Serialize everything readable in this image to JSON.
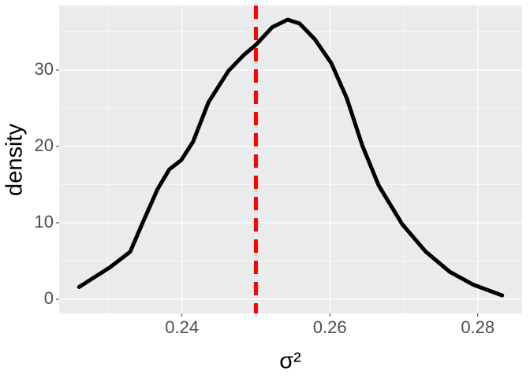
{
  "chart_data": {
    "type": "line",
    "x_label": "σ²",
    "y_label": "density",
    "x": [
      0.2261,
      0.2303,
      0.233,
      0.2346,
      0.2367,
      0.2383,
      0.2399,
      0.2415,
      0.2436,
      0.2463,
      0.2484,
      0.25,
      0.2522,
      0.2543,
      0.2559,
      0.258,
      0.2602,
      0.2623,
      0.2644,
      0.2666,
      0.2698,
      0.273,
      0.2762,
      0.2794,
      0.2833
    ],
    "series": [
      {
        "name": "density",
        "color": "#000000",
        "values": [
          1.6,
          4.2,
          6.2,
          9.8,
          14.4,
          17.0,
          18.2,
          20.6,
          25.8,
          29.9,
          32.0,
          33.3,
          35.6,
          36.6,
          36.1,
          34.0,
          30.9,
          26.3,
          20.1,
          14.9,
          9.8,
          6.2,
          3.6,
          1.9,
          0.5
        ]
      }
    ],
    "vline": {
      "value": 0.25,
      "color": "#ff0000",
      "dashed": true
    },
    "xlim": [
      0.2234,
      0.286
    ],
    "ylim": [
      -1.86,
      38.45
    ],
    "xticks": [
      0.24,
      0.26,
      0.28
    ],
    "yticks": [
      0,
      10,
      20,
      30
    ],
    "xminor": [
      0.23,
      0.25,
      0.27
    ],
    "yminor": [
      5,
      15,
      25,
      35
    ],
    "grid": true,
    "panel_color": "#ebebeb"
  }
}
